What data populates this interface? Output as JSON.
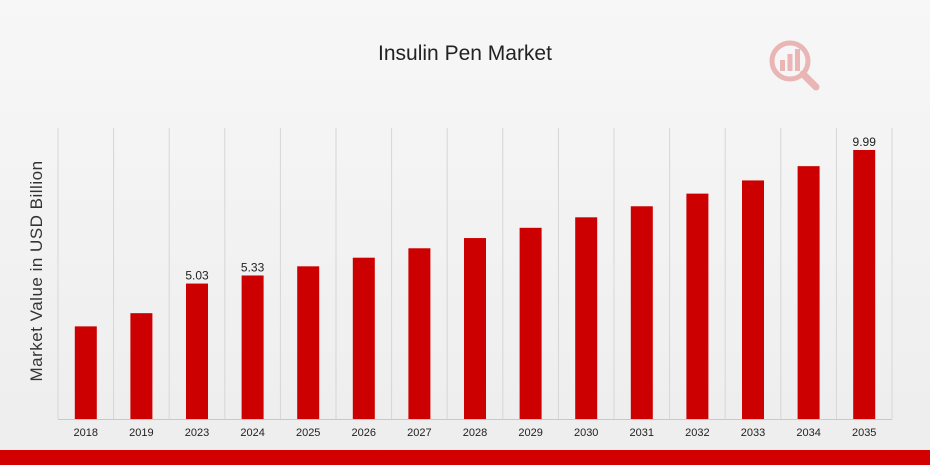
{
  "chart_data": {
    "type": "bar",
    "title": "Insulin Pen Market",
    "xlabel": "",
    "ylabel": "Market Value in USD Billion",
    "categories": [
      "2018",
      "2019",
      "2023",
      "2024",
      "2025",
      "2026",
      "2027",
      "2028",
      "2029",
      "2030",
      "2031",
      "2032",
      "2033",
      "2034",
      "2035"
    ],
    "values": [
      3.44,
      3.93,
      5.03,
      5.33,
      5.67,
      5.99,
      6.34,
      6.72,
      7.1,
      7.49,
      7.9,
      8.37,
      8.86,
      9.39,
      9.99
    ],
    "data_labels": [
      "",
      "",
      "5.03",
      "5.33",
      "",
      "",
      "",
      "",
      "",
      "",
      "",
      "",
      "",
      "",
      "9.99"
    ],
    "ylim": [
      0,
      10.5
    ],
    "grid": "vertical",
    "legend": "none",
    "bar_color": "#cc0000"
  },
  "colors": {
    "bar": "#cc0000",
    "accent_strip": "#d30000",
    "grid": "#d6d6d6"
  },
  "logo": {
    "icon": "magnifier-bar-chart-logo-icon"
  }
}
